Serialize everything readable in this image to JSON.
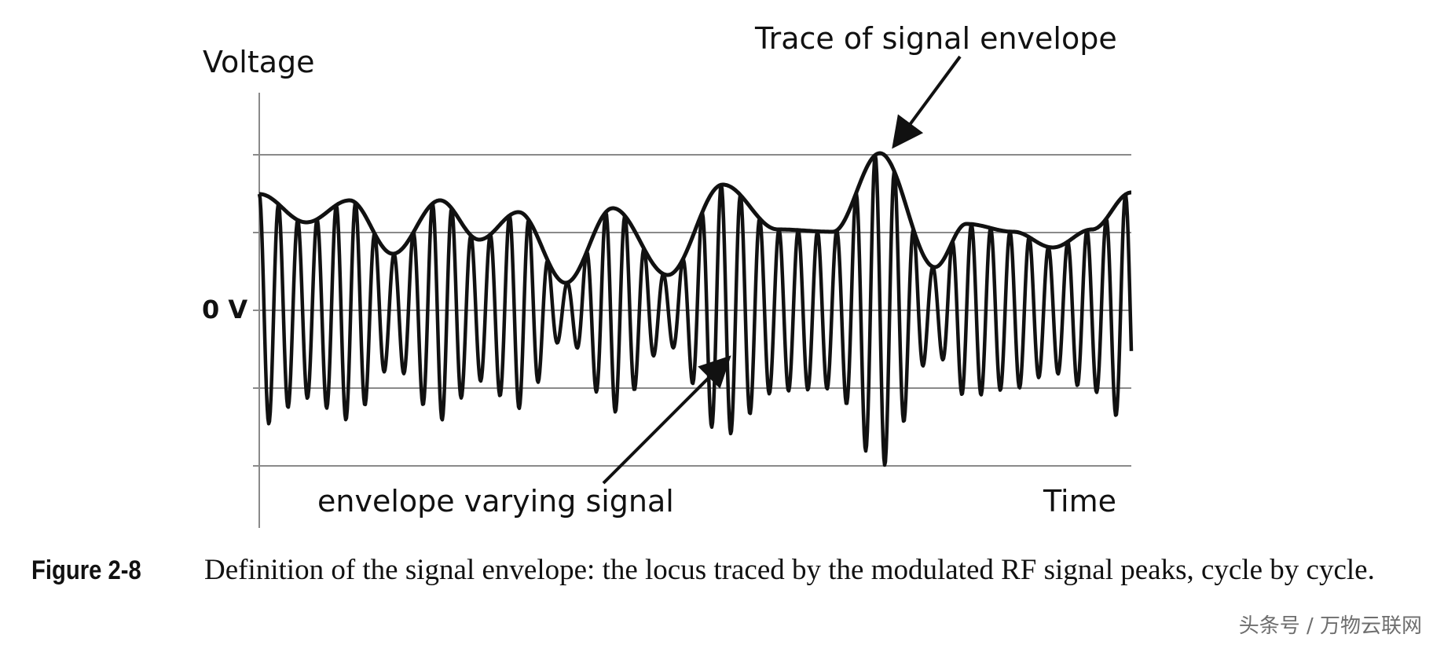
{
  "diagram": {
    "y_axis_label": "Voltage",
    "x_axis_label": "Time",
    "zero_label": "0 V",
    "annotation_envelope": "Trace of signal envelope",
    "annotation_signal": "envelope varying signal"
  },
  "figure": {
    "number": "Figure 2-8",
    "caption": "Definition of the signal envelope: the locus traced by the modulated RF signal peaks, cycle by cycle."
  },
  "watermark": "头条号 / 万物云联网",
  "colors": {
    "ink": "#111111",
    "grid": "#8a8a8a",
    "background": "#ffffff"
  }
}
